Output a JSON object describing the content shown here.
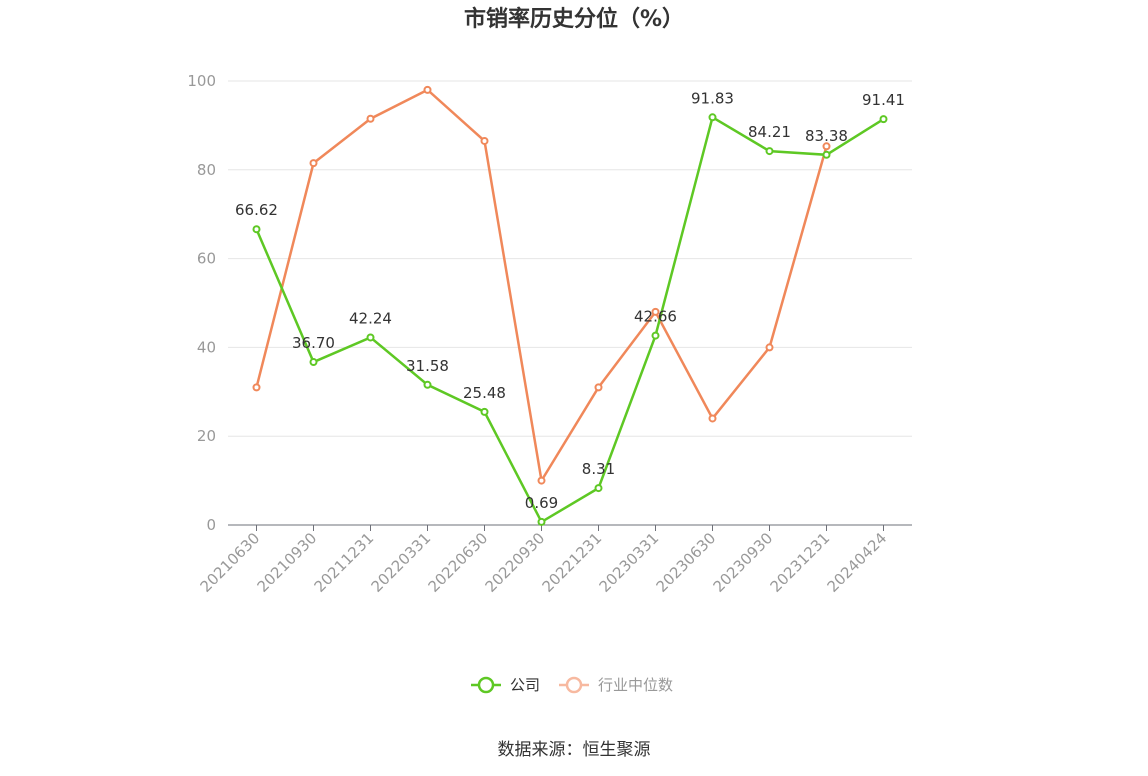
{
  "chart_data": {
    "type": "line",
    "title": "市销率历史分位（%）",
    "categories": [
      "20210630",
      "20210930",
      "20211231",
      "20220331",
      "20220630",
      "20220930",
      "20221231",
      "20230331",
      "20230630",
      "20230930",
      "20231231",
      "20240424"
    ],
    "ylim": [
      0,
      100
    ],
    "yticks": [
      "0",
      "20",
      "40",
      "60",
      "80",
      "100"
    ],
    "grid": true,
    "legend_position": "bottom",
    "series": [
      {
        "name": "公司",
        "color": "#5ec824",
        "values": [
          66.62,
          36.7,
          42.24,
          31.58,
          25.48,
          0.69,
          8.31,
          42.66,
          91.83,
          84.21,
          83.38,
          91.41
        ],
        "labels": [
          "66.62",
          "36.70",
          "42.24",
          "31.58",
          "25.48",
          "0.69",
          "8.31",
          "42.66",
          "91.83",
          "84.21",
          "83.38",
          "91.41"
        ]
      },
      {
        "name": "行业中位数",
        "color": "#f0885a",
        "values": [
          31,
          81.5,
          91.5,
          98,
          86.5,
          10,
          31,
          48,
          24,
          40,
          85.3,
          null
        ]
      }
    ],
    "source": "数据来源：恒生聚源"
  }
}
